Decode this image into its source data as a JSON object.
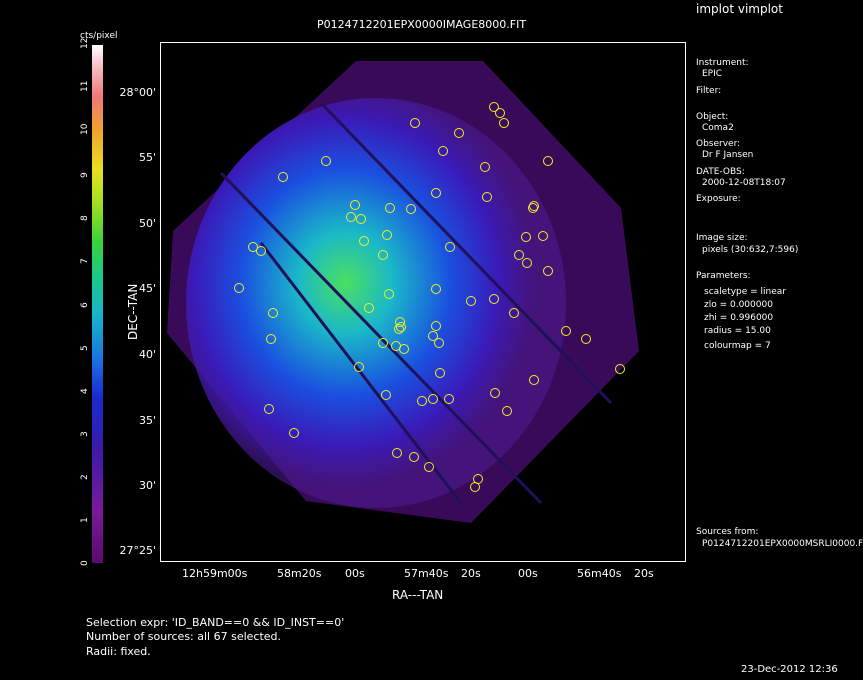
{
  "app": {
    "title": "implot vimplot"
  },
  "plot": {
    "title": "P0124712201EPX0000IMAGE8000.FIT",
    "xlabel": "RA---TAN",
    "ylabel": "DEC--TAN",
    "y_ticks": [
      "28°00'",
      "55'",
      "50'",
      "45'",
      "40'",
      "35'",
      "30'",
      "27°25'"
    ],
    "x_ticks": [
      "12h59m00s",
      "58m20s",
      "00s",
      "57m40s",
      "20s",
      "00s",
      "56m40s",
      "20s"
    ]
  },
  "colorbar": {
    "label": "cts/pixel",
    "ticks": [
      "0",
      "1",
      "2",
      "3",
      "4",
      "5",
      "6",
      "7",
      "8",
      "9",
      "10",
      "11",
      "12"
    ]
  },
  "info": {
    "instrument_label": "Instrument:",
    "instrument_value": "EPIC",
    "filter_label": "Filter:",
    "object_label": "Object:",
    "object_value": "Coma2",
    "observer_label": "Observer:",
    "observer_value": "Dr F Jansen",
    "date_label": "DATE-OBS:",
    "date_value": "2000-12-08T18:07",
    "exposure_label": "Exposure:",
    "imagesize_label": "Image size:",
    "imagesize_value": "pixels (30:632,7:596)",
    "params_label": "Parameters:",
    "param_scaletype": "scaletype = linear",
    "param_zlo": "zlo =  0.000000",
    "param_zhi": "zhi =  0.996000",
    "param_radius": "radius =  15.00",
    "param_colourmap": "colourmap =   7",
    "sources_label": "Sources from:",
    "sources_value": "P0124712201EPX0000MSRLI0000.F"
  },
  "footer": {
    "selection": "Selection expr: 'ID_BAND==0 && ID_INST==0'",
    "count": "Number of sources: all 67 selected.",
    "radii": "Radii: fixed.",
    "timestamp": "23-Dec-2012 12:36"
  },
  "colors": {
    "background": "#000000",
    "source_circle": "#f0f020"
  }
}
